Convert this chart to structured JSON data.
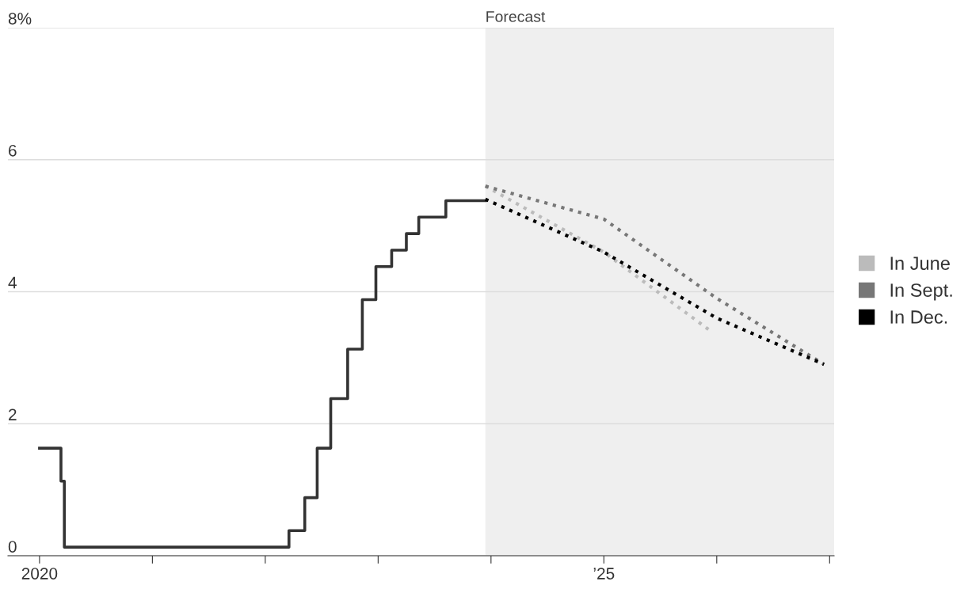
{
  "chart_data": {
    "type": "line",
    "series": [
      {
        "type": "step",
        "color": "#333333",
        "x": [
          2020.0,
          2020.19,
          2020.22,
          2022.21,
          2022.35,
          2022.46,
          2022.58,
          2022.73,
          2022.86,
          2022.98,
          2023.12,
          2023.25,
          2023.36,
          2023.6,
          2023.95
        ],
        "values": [
          1.63,
          1.13,
          0.13,
          0.38,
          0.88,
          1.63,
          2.38,
          3.13,
          3.88,
          4.38,
          4.63,
          4.88,
          5.13,
          5.38,
          5.38
        ]
      },
      {
        "name": "In June",
        "color": "#bbbbbb",
        "line_style": "dotted",
        "x": [
          2023.95,
          2025.0,
          2025.95
        ],
        "values": [
          5.6,
          4.6,
          3.4
        ]
      },
      {
        "name": "In Sept.",
        "color": "#777777",
        "line_style": "dotted",
        "x": [
          2023.95,
          2025.0,
          2026.0,
          2026.95
        ],
        "values": [
          5.6,
          5.1,
          3.9,
          2.9
        ]
      },
      {
        "name": "In Dec.",
        "color": "#000000",
        "line_style": "dotted",
        "x": [
          2023.95,
          2025.0,
          2026.0,
          2026.95
        ],
        "values": [
          5.4,
          4.6,
          3.6,
          2.9
        ]
      }
    ],
    "xlim": [
      2019.72,
      2027.04
    ],
    "xticks": [
      {
        "value": 2020,
        "label": "2020"
      },
      {
        "value": 2021,
        "label": null
      },
      {
        "value": 2022,
        "label": null
      },
      {
        "value": 2023,
        "label": null
      },
      {
        "value": 2024,
        "label": null
      },
      {
        "value": 2025,
        "label": "’25"
      },
      {
        "value": 2026,
        "label": null
      },
      {
        "value": 2027,
        "label": null
      }
    ],
    "ylim": [
      0,
      8
    ],
    "yticks": [
      0,
      2,
      4,
      6,
      {
        "value": 8,
        "label": "8%"
      }
    ],
    "grid": "y",
    "bands": [
      {
        "axis": "x",
        "from": 2023.95,
        "to": 2027.04,
        "label": "Forecast",
        "color": "#efefef"
      }
    ],
    "legend": "right"
  }
}
